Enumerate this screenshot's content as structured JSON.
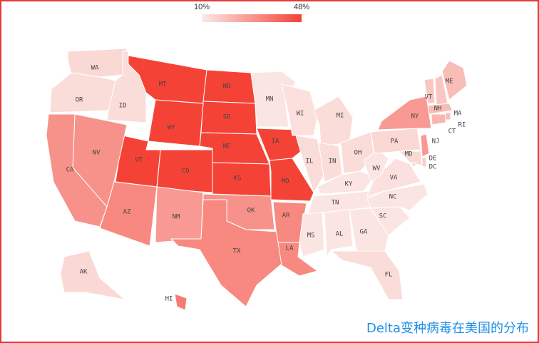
{
  "chart_data": {
    "type": "choropleth",
    "title": "Delta变种病毒在美国的分布",
    "color_scale": {
      "min_color": "#fbe9e7",
      "max_color": "#f44336",
      "ticks": [
        {
          "value": 10,
          "label": "10%"
        },
        {
          "value": 48,
          "label": "48%"
        }
      ]
    },
    "regions": [
      {
        "name": "WA",
        "value": 14
      },
      {
        "name": "OR",
        "value": 13
      },
      {
        "name": "ID",
        "value": 13
      },
      {
        "name": "MT",
        "value": 48
      },
      {
        "name": "ND",
        "value": 48
      },
      {
        "name": "SD",
        "value": 48
      },
      {
        "name": "WY",
        "value": 48
      },
      {
        "name": "NE",
        "value": 48
      },
      {
        "name": "CO",
        "value": 48
      },
      {
        "name": "KS",
        "value": 48
      },
      {
        "name": "UT",
        "value": 48
      },
      {
        "name": "NV",
        "value": 30
      },
      {
        "name": "CA",
        "value": 30
      },
      {
        "name": "AZ",
        "value": 32
      },
      {
        "name": "NM",
        "value": 28
      },
      {
        "name": "OK",
        "value": 30
      },
      {
        "name": "TX",
        "value": 32
      },
      {
        "name": "MN",
        "value": 11
      },
      {
        "name": "IA",
        "value": 48
      },
      {
        "name": "MO",
        "value": 48
      },
      {
        "name": "AR",
        "value": 32
      },
      {
        "name": "LA",
        "value": 32
      },
      {
        "name": "WI",
        "value": 12
      },
      {
        "name": "MI",
        "value": 13
      },
      {
        "name": "IL",
        "value": 13
      },
      {
        "name": "IN",
        "value": 13
      },
      {
        "name": "OH",
        "value": 13
      },
      {
        "name": "KY",
        "value": 11
      },
      {
        "name": "TN",
        "value": 11
      },
      {
        "name": "MS",
        "value": 11
      },
      {
        "name": "AL",
        "value": 11
      },
      {
        "name": "GA",
        "value": 11
      },
      {
        "name": "FL",
        "value": 13
      },
      {
        "name": "SC",
        "value": 11
      },
      {
        "name": "NC",
        "value": 11
      },
      {
        "name": "VA",
        "value": 12
      },
      {
        "name": "WV",
        "value": 11
      },
      {
        "name": "PA",
        "value": 14
      },
      {
        "name": "NY",
        "value": 28
      },
      {
        "name": "VT",
        "value": 18
      },
      {
        "name": "NH",
        "value": 18
      },
      {
        "name": "ME",
        "value": 20
      },
      {
        "name": "MA",
        "value": 20
      },
      {
        "name": "RI",
        "value": 20
      },
      {
        "name": "CT",
        "value": 22
      },
      {
        "name": "NJ",
        "value": 28
      },
      {
        "name": "DE",
        "value": 16
      },
      {
        "name": "MD",
        "value": 14
      },
      {
        "name": "DC",
        "value": 14
      },
      {
        "name": "AK",
        "value": 14
      },
      {
        "name": "HI",
        "value": 35
      }
    ]
  }
}
